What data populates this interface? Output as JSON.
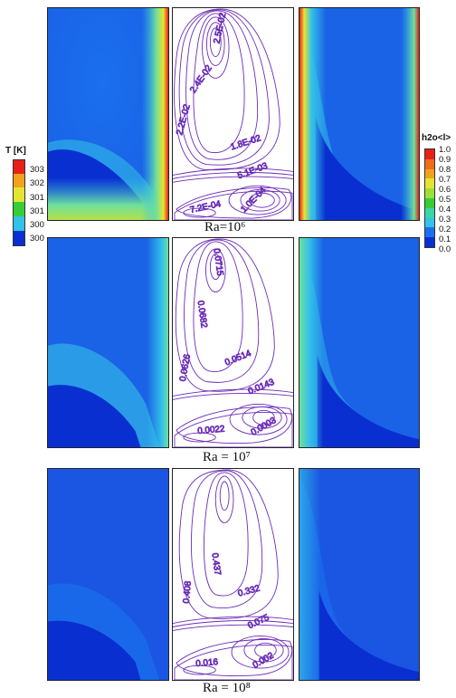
{
  "rows": [
    {
      "caption": "Ra=10⁶",
      "labels": [
        {
          "text": "2.5E-02"
        },
        {
          "text": "2.4E-02"
        },
        {
          "text": "2.2E-02"
        },
        {
          "text": "1.8E-02"
        },
        {
          "text": "5.1E-03"
        },
        {
          "text": "7.2E-04"
        },
        {
          "text": "1.0E-04"
        }
      ]
    },
    {
      "caption": "Ra = 10⁷",
      "labels": [
        {
          "text": "0.0715"
        },
        {
          "text": "0.0682"
        },
        {
          "text": "0.0626"
        },
        {
          "text": "0.0514"
        },
        {
          "text": "0.0143"
        },
        {
          "text": "0.0022"
        },
        {
          "text": "0.0003"
        }
      ]
    },
    {
      "caption": "Ra = 10⁸",
      "labels": [
        {
          "text": "0.437"
        },
        {
          "text": "0.408"
        },
        {
          "text": "0.332"
        },
        {
          "text": "0.075"
        },
        {
          "text": "0.016"
        },
        {
          "text": "0.002"
        }
      ]
    }
  ],
  "legend_temperature": {
    "title": "T [K]",
    "ticks": [
      "303",
      "302",
      "301",
      "301",
      "300",
      "300"
    ]
  },
  "legend_h2o": {
    "title": "h2o<l>",
    "ticks": [
      "1.0",
      "0.9",
      "0.8",
      "0.7",
      "0.6",
      "0.5",
      "0.4",
      "0.3",
      "0.2",
      "0.1",
      "0.0"
    ]
  },
  "colors": {
    "field_dark": "#0a2fd0",
    "field_mid": "#1a70ee",
    "field_light": "#33c2e8",
    "field_green": "#6fe09a",
    "field_yellow": "#e6e432",
    "field_red": "#e8201a",
    "streamline": "#6a2ab8"
  }
}
